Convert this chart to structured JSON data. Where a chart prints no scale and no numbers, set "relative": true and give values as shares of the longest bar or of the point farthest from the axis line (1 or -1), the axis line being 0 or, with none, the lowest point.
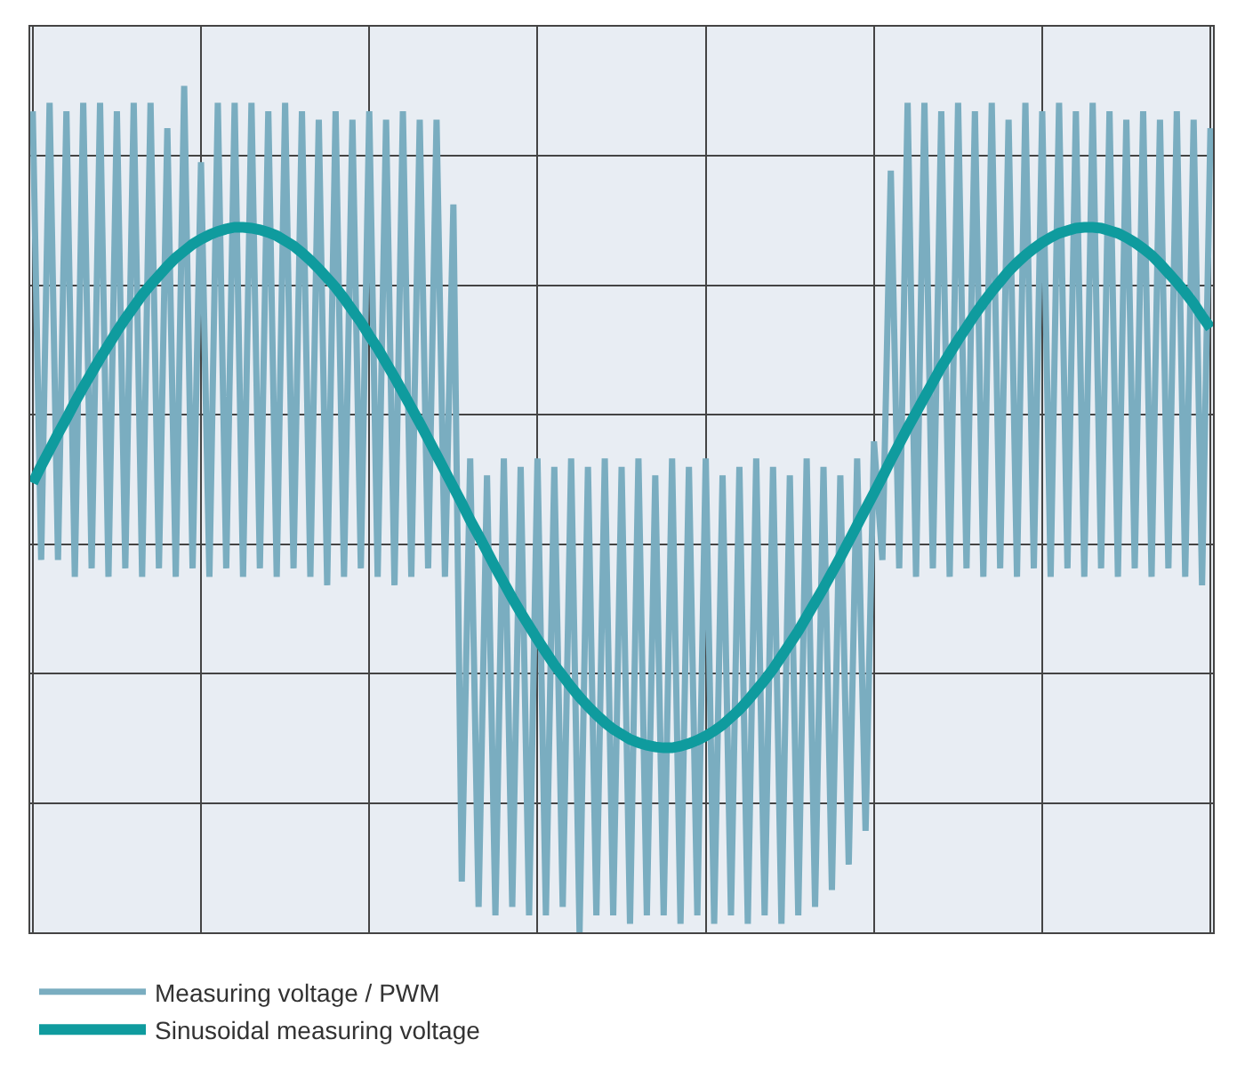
{
  "chart_data": {
    "type": "line",
    "relative": true,
    "grid": true,
    "legend": "bottom left",
    "line_style": "solid",
    "marker": "none",
    "categories": [
      null,
      null,
      null,
      null,
      null,
      null,
      null,
      null,
      null,
      null,
      null,
      null,
      null,
      null,
      null,
      null,
      null,
      null,
      null,
      null,
      null,
      null,
      null,
      null,
      null,
      null,
      null,
      null,
      null,
      null,
      null,
      null,
      null,
      null,
      null,
      null,
      null,
      null,
      null,
      null,
      null,
      null,
      null,
      null,
      null,
      null,
      null,
      null,
      null,
      null,
      null,
      null,
      null,
      null,
      null,
      null,
      null,
      null,
      null,
      null,
      null,
      null,
      null,
      null,
      null,
      null,
      null,
      null,
      null,
      null,
      null,
      null,
      null,
      null,
      null,
      null,
      null,
      null,
      null,
      null,
      null,
      null,
      null,
      null,
      null,
      null,
      null,
      null,
      null,
      null,
      null,
      null,
      null,
      null,
      null,
      null,
      null,
      null,
      null,
      null,
      null,
      null,
      null,
      null,
      null,
      null,
      null,
      null,
      null,
      null,
      null,
      null,
      null,
      null,
      null,
      null,
      null,
      null,
      null,
      null,
      null,
      null,
      null,
      null,
      null,
      null,
      null,
      null,
      null,
      null,
      null,
      null,
      null,
      null,
      null,
      null,
      null,
      null,
      null,
      null,
      null
    ],
    "series": [
      {
        "name": "Measuring voltage / PWM",
        "color": "#7aadc0",
        "values": [
          0.97,
          0.44,
          0.98,
          0.44,
          0.97,
          0.42,
          0.98,
          0.43,
          0.98,
          0.42,
          0.97,
          0.43,
          0.98,
          0.42,
          0.98,
          0.43,
          0.95,
          0.42,
          1.0,
          0.43,
          0.91,
          0.42,
          0.98,
          0.43,
          0.98,
          0.42,
          0.98,
          0.43,
          0.97,
          0.42,
          0.98,
          0.43,
          0.97,
          0.42,
          0.96,
          0.41,
          0.97,
          0.42,
          0.96,
          0.43,
          0.97,
          0.42,
          0.96,
          0.41,
          0.97,
          0.42,
          0.96,
          0.43,
          0.96,
          0.42,
          0.86,
          0.06,
          0.56,
          0.03,
          0.54,
          0.02,
          0.56,
          0.03,
          0.55,
          0.02,
          0.56,
          0.02,
          0.55,
          0.03,
          0.56,
          0.0,
          0.55,
          0.02,
          0.56,
          0.02,
          0.55,
          0.01,
          0.56,
          0.02,
          0.54,
          0.02,
          0.56,
          0.01,
          0.55,
          0.02,
          0.56,
          0.01,
          0.54,
          0.02,
          0.55,
          0.01,
          0.56,
          0.02,
          0.55,
          0.01,
          0.54,
          0.02,
          0.56,
          0.03,
          0.55,
          0.05,
          0.54,
          0.08,
          0.56,
          0.12,
          0.58,
          0.44,
          0.9,
          0.43,
          0.98,
          0.42,
          0.98,
          0.43,
          0.97,
          0.42,
          0.98,
          0.43,
          0.97,
          0.42,
          0.98,
          0.43,
          0.96,
          0.42,
          0.98,
          0.43,
          0.97,
          0.42,
          0.98,
          0.43,
          0.97,
          0.42,
          0.98,
          0.43,
          0.97,
          0.42,
          0.96,
          0.43,
          0.97,
          0.42,
          0.96,
          0.43,
          0.97,
          0.42,
          0.96,
          0.41,
          0.95
        ]
      },
      {
        "name": "Sinusoidal measuring voltage",
        "color": "#0f9b9e",
        "values": [
          0.531,
          0.551,
          0.57,
          0.589,
          0.607,
          0.626,
          0.644,
          0.661,
          0.678,
          0.694,
          0.71,
          0.725,
          0.739,
          0.753,
          0.765,
          0.776,
          0.787,
          0.797,
          0.805,
          0.813,
          0.819,
          0.824,
          0.828,
          0.831,
          0.833,
          0.833,
          0.832,
          0.83,
          0.827,
          0.823,
          0.817,
          0.811,
          0.803,
          0.794,
          0.784,
          0.773,
          0.762,
          0.749,
          0.735,
          0.721,
          0.705,
          0.69,
          0.673,
          0.656,
          0.638,
          0.62,
          0.602,
          0.583,
          0.564,
          0.545,
          0.526,
          0.507,
          0.487,
          0.469,
          0.45,
          0.431,
          0.413,
          0.395,
          0.378,
          0.362,
          0.346,
          0.331,
          0.316,
          0.303,
          0.29,
          0.278,
          0.267,
          0.257,
          0.248,
          0.24,
          0.234,
          0.228,
          0.224,
          0.221,
          0.219,
          0.218,
          0.218,
          0.22,
          0.223,
          0.227,
          0.232,
          0.238,
          0.245,
          0.254,
          0.263,
          0.274,
          0.286,
          0.298,
          0.311,
          0.326,
          0.341,
          0.356,
          0.373,
          0.39,
          0.407,
          0.425,
          0.443,
          0.462,
          0.481,
          0.5,
          0.519,
          0.538,
          0.558,
          0.577,
          0.596,
          0.614,
          0.632,
          0.65,
          0.668,
          0.684,
          0.7,
          0.715,
          0.73,
          0.744,
          0.757,
          0.769,
          0.781,
          0.791,
          0.8,
          0.808,
          0.815,
          0.821,
          0.826,
          0.829,
          0.832,
          0.833,
          0.833,
          0.832,
          0.829,
          0.826,
          0.821,
          0.815,
          0.808,
          0.8,
          0.79,
          0.779,
          0.768,
          0.756,
          0.743,
          0.728,
          0.714
        ]
      }
    ]
  }
}
